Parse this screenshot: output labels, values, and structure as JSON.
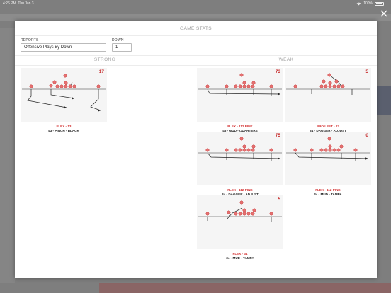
{
  "status_bar": {
    "time": "4:26 PM",
    "date": "Thu Jan 3",
    "battery": "100%"
  },
  "modal": {
    "title": "GAME STATS",
    "reports": {
      "label": "REPORTS",
      "value": "Offensive Plays By Down"
    },
    "down": {
      "label": "DOWN",
      "value": "1"
    }
  },
  "columns": {
    "strong": "STRONG",
    "weak": "WEAK"
  },
  "colors": {
    "accent": "#d32f2f",
    "player_fill": "#e57373",
    "player_stroke": "#c62828"
  },
  "plays": {
    "strong": [
      {
        "count": "17",
        "formation": "FLEX - 13",
        "name": "43 - PINCH - BLACK"
      }
    ],
    "weak": [
      {
        "count": "73",
        "formation": "FLEX - 112 PINK",
        "name": "45 - MUD - QUARTERS"
      },
      {
        "count": "5",
        "formation": "PRO LEFT - 22",
        "name": "34 - DAGGER - ADJUST"
      },
      {
        "count": "75",
        "formation": "FLEX - 112 PINK",
        "name": "34 - DAGGER - ADJUST"
      },
      {
        "count": "0",
        "formation": "FLEX - 112 PINK",
        "name": "34 - MUD - TAMPA"
      },
      {
        "count": "5",
        "formation": "FLEX - 34",
        "name": "34 - MUD - TAMPA"
      }
    ]
  },
  "icons": {
    "close": "close-icon",
    "wifi": "wifi-icon",
    "battery": "battery-icon"
  }
}
